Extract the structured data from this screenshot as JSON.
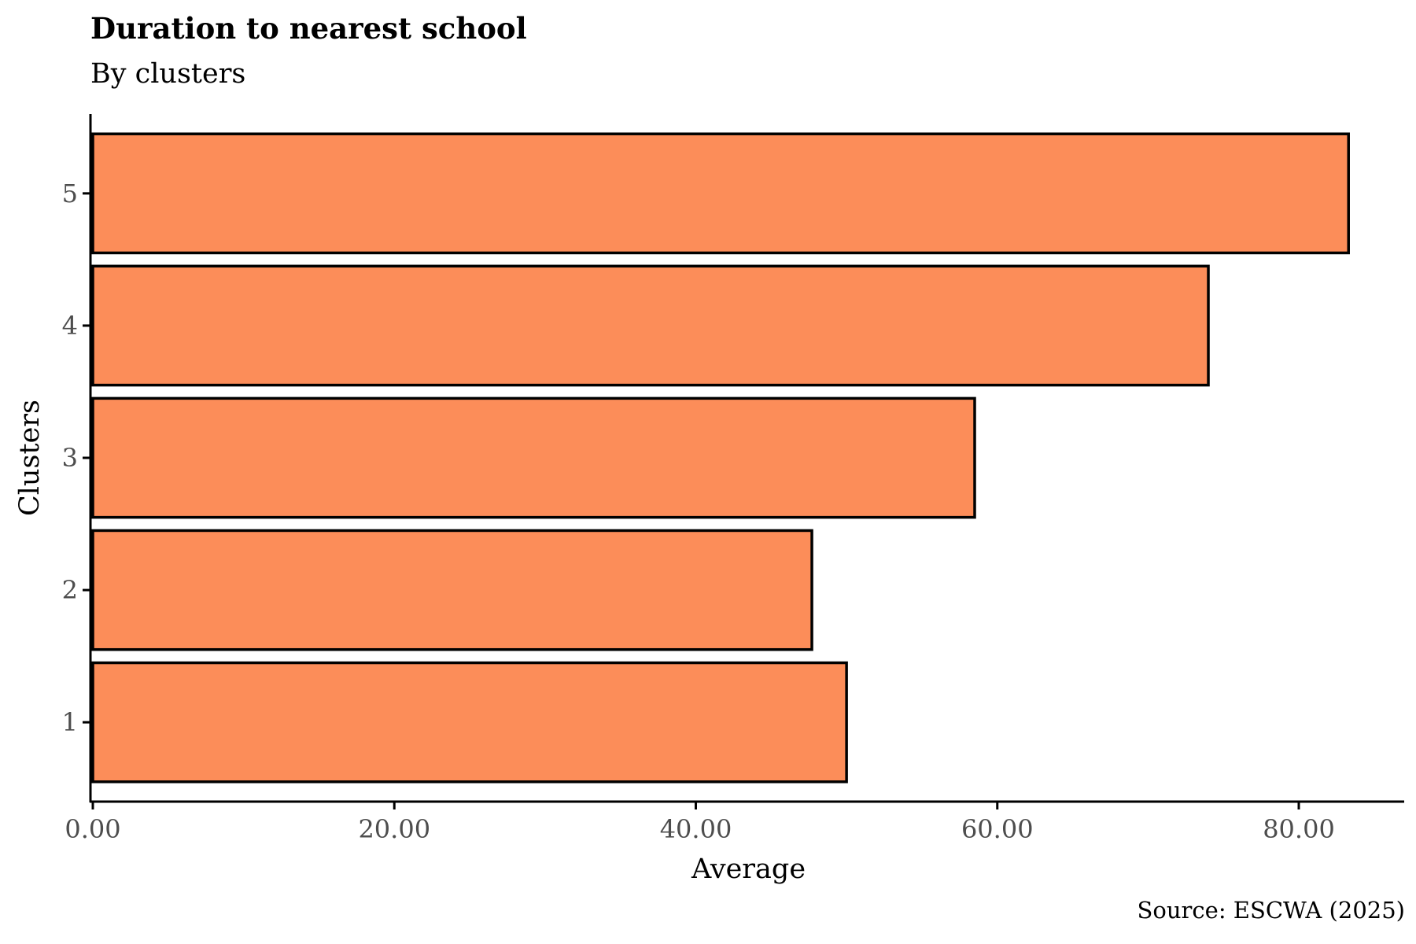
{
  "chart_data": {
    "type": "bar",
    "orientation": "horizontal",
    "title": "Duration to nearest school",
    "subtitle": "By clusters",
    "caption": "Source: ESCWA (2025)",
    "xlabel": "Average",
    "ylabel": "Clusters",
    "categories": [
      "1",
      "2",
      "3",
      "4",
      "5"
    ],
    "values": [
      50.0,
      47.7,
      58.5,
      74.0,
      83.3
    ],
    "xlim": [
      0,
      87.5
    ],
    "xticks": [
      0,
      20,
      40,
      60,
      80
    ],
    "xtick_labels": [
      "0.00",
      "20.00",
      "40.00",
      "60.00",
      "80.00"
    ],
    "grid": false,
    "legend": "none",
    "colors": {
      "bar_fill": "#FC8D59",
      "bar_stroke": "#000000"
    }
  }
}
